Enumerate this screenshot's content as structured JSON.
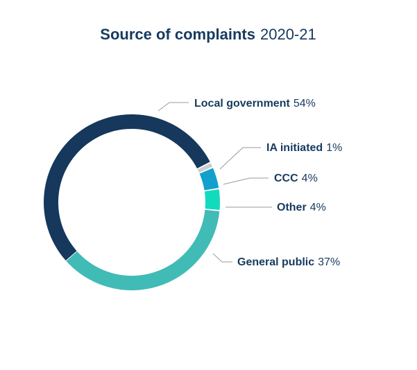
{
  "chart_data": {
    "type": "pie",
    "title": "Source of complaints",
    "subtitle": "2020-21",
    "donut": true,
    "slices": [
      {
        "label": "Local government",
        "value": 54,
        "value_label": "54%",
        "color": "#15385c"
      },
      {
        "label": "IA initiated",
        "value": 1,
        "value_label": "1%",
        "color": "#c8cdd2"
      },
      {
        "label": "CCC",
        "value": 4,
        "value_label": "4%",
        "color": "#12a0cc"
      },
      {
        "label": "Other",
        "value": 4,
        "value_label": "4%",
        "color": "#12dbbd"
      },
      {
        "label": "General public",
        "value": 37,
        "value_label": "37%",
        "color": "#41bbb6"
      }
    ]
  }
}
